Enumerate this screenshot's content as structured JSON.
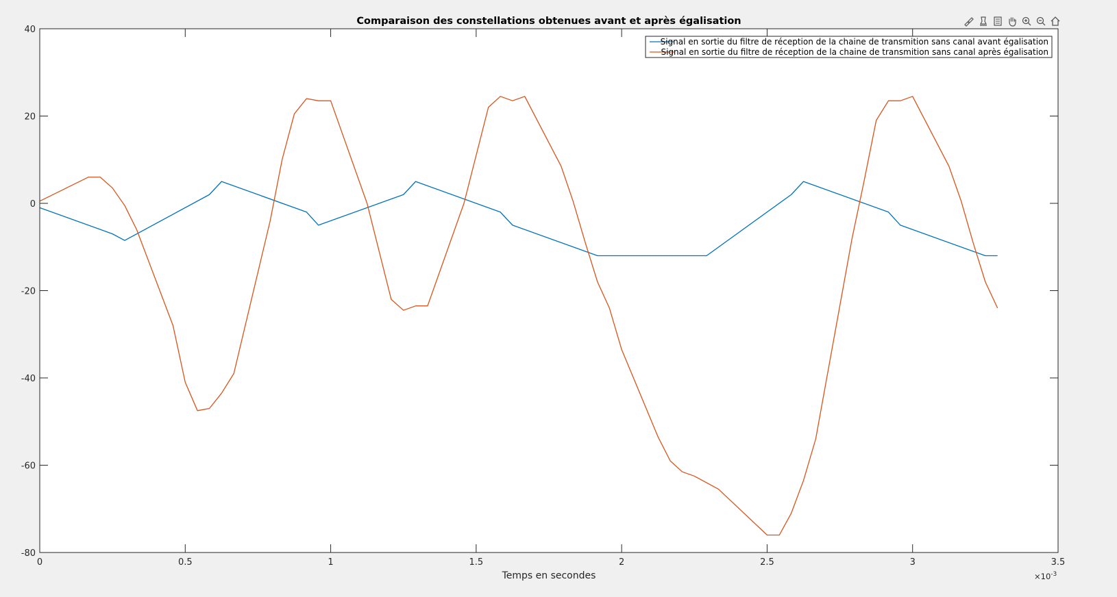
{
  "toolbar": {
    "icons": [
      "brush-icon",
      "data-tips-icon",
      "legend-toggle-icon",
      "pan-icon",
      "zoom-in-icon",
      "zoom-out-icon",
      "home-icon"
    ]
  },
  "colors": {
    "figure_background": "#f0f0f0",
    "axes_background": "#ffffff",
    "series_before": "#0072bd",
    "series_after": "#d95319"
  },
  "chart_data": {
    "type": "line",
    "title": "Comparaison des constellations obtenues avant et après égalisation",
    "xlabel": "Temps en secondes",
    "ylabel": "",
    "x_exponent_label": "×10",
    "x_exponent_power": "-3",
    "xlim": [
      0,
      3.5
    ],
    "ylim": [
      -80,
      40
    ],
    "xticks": [
      0,
      0.5,
      1,
      1.5,
      2,
      2.5,
      3,
      3.5
    ],
    "xtick_labels": [
      "0",
      "0.5",
      "1",
      "1.5",
      "2",
      "2.5",
      "3",
      "3.5"
    ],
    "yticks": [
      -80,
      -60,
      -40,
      -20,
      0,
      20,
      40
    ],
    "ytick_labels": [
      "-80",
      "-60",
      "-40",
      "-20",
      "0",
      "20",
      "40"
    ],
    "grid": false,
    "legend_position": "top-right",
    "series": [
      {
        "name": "Signal en sortie du filtre de réception de la chaine de transmition sans canal avant égalisation",
        "color": "#0072bd",
        "points": [
          [
            0,
            -1
          ],
          [
            0.25,
            -7
          ],
          [
            0.292,
            -8.5
          ],
          [
            0.583,
            2
          ],
          [
            0.625,
            5
          ],
          [
            0.917,
            -2
          ],
          [
            0.958,
            -5
          ],
          [
            1.25,
            2
          ],
          [
            1.292,
            5
          ],
          [
            1.583,
            -2
          ],
          [
            1.625,
            -5
          ],
          [
            1.917,
            -12
          ],
          [
            2.292,
            -12
          ],
          [
            2.583,
            2
          ],
          [
            2.625,
            5
          ],
          [
            2.917,
            -2
          ],
          [
            2.958,
            -5
          ],
          [
            3.25,
            -12
          ],
          [
            3.292,
            -12
          ]
        ]
      },
      {
        "name": "Signal en sortie du filtre de réception de la chaine de transmition sans canal après égalisation",
        "color": "#d95319",
        "points": [
          [
            0,
            0.5
          ],
          [
            0.167,
            6
          ],
          [
            0.208,
            6
          ],
          [
            0.25,
            3.5
          ],
          [
            0.292,
            -0.5
          ],
          [
            0.333,
            -6
          ],
          [
            0.458,
            -28
          ],
          [
            0.5,
            -41
          ],
          [
            0.542,
            -47.5
          ],
          [
            0.583,
            -47
          ],
          [
            0.625,
            -43.5
          ],
          [
            0.667,
            -39
          ],
          [
            0.792,
            -4
          ],
          [
            0.833,
            10
          ],
          [
            0.875,
            20.5
          ],
          [
            0.917,
            24
          ],
          [
            0.958,
            23.5
          ],
          [
            1,
            23.5
          ],
          [
            1.125,
            0
          ],
          [
            1.208,
            -22
          ],
          [
            1.25,
            -24.5
          ],
          [
            1.292,
            -23.5
          ],
          [
            1.333,
            -23.5
          ],
          [
            1.458,
            0
          ],
          [
            1.542,
            22
          ],
          [
            1.583,
            24.5
          ],
          [
            1.625,
            23.5
          ],
          [
            1.667,
            24.5
          ],
          [
            1.792,
            8.5
          ],
          [
            1.833,
            0.5
          ],
          [
            1.875,
            -9
          ],
          [
            1.917,
            -18
          ],
          [
            1.958,
            -24
          ],
          [
            2,
            -33.5
          ],
          [
            2.125,
            -53.5
          ],
          [
            2.167,
            -59
          ],
          [
            2.208,
            -61.5
          ],
          [
            2.25,
            -62.5
          ],
          [
            2.333,
            -65.5
          ],
          [
            2.5,
            -76
          ],
          [
            2.542,
            -76
          ],
          [
            2.583,
            -71
          ],
          [
            2.625,
            -63.5
          ],
          [
            2.667,
            -54
          ],
          [
            2.792,
            -8
          ],
          [
            2.833,
            5
          ],
          [
            2.875,
            19
          ],
          [
            2.917,
            23.5
          ],
          [
            2.958,
            23.5
          ],
          [
            3,
            24.5
          ],
          [
            3.125,
            8.5
          ],
          [
            3.167,
            0.5
          ],
          [
            3.208,
            -9
          ],
          [
            3.25,
            -18
          ],
          [
            3.292,
            -24
          ]
        ]
      }
    ]
  }
}
